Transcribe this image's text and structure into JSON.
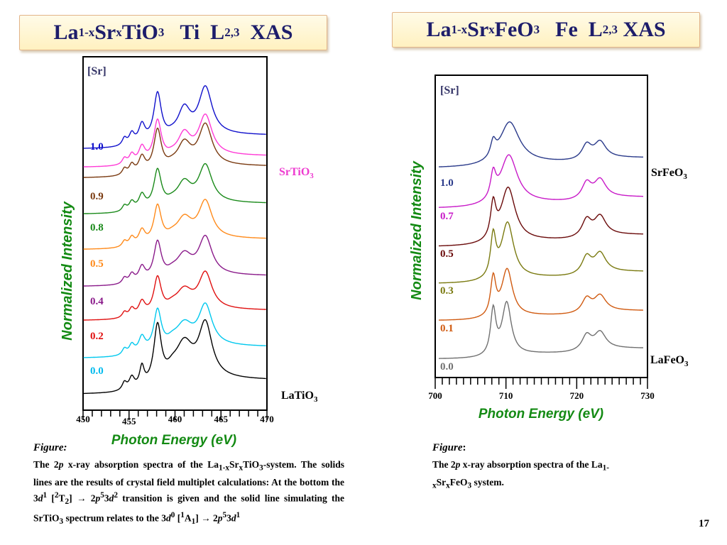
{
  "slide": {
    "page_number": "17"
  },
  "titles": {
    "left": {
      "pre": "La",
      "s1": "1-x",
      "mid1": "Sr",
      "s2": "x",
      "mid2": "TiO",
      "s3": "3",
      "mid3": "Ti  L",
      "s4": "2,3",
      "tail": "  XAS"
    },
    "right": {
      "pre": "La",
      "s1": "1-x",
      "mid1": "Sr",
      "s2": "x",
      "mid2": "FeO",
      "s3": "3",
      "mid3": "Fe  L",
      "s4": "2,3",
      "tail": " XAS"
    }
  },
  "colors": {
    "title_text": "#1d1d6b",
    "axis_title": "#138a13",
    "srtio3_label": "#ee3bd0",
    "frame": "#000000"
  },
  "chart_data": [
    {
      "type": "line",
      "xlabel": "Photon Energy  (eV)",
      "ylabel": "Normalized Intensity",
      "xlim": [
        450,
        470
      ],
      "x_ticks": [
        450,
        455,
        460,
        465,
        470
      ],
      "legend_header": "[Sr]",
      "end_labels": {
        "top": "SrTiO3",
        "bottom": "LaTiO3"
      },
      "series": [
        {
          "name": "0.0",
          "color": "#000000",
          "label_color": "#00bbee"
        },
        {
          "name": "",
          "color": "#00c8ee"
        },
        {
          "name": "0.2",
          "color": "#e01010"
        },
        {
          "name": "0.4",
          "color": "#8a1a8a"
        },
        {
          "name": "0.5",
          "color": "#ff8a1a"
        },
        {
          "name": "0.8",
          "color": "#1a8a1a"
        },
        {
          "name": "0.9",
          "color": "#7a3a10"
        },
        {
          "name": "",
          "color": "#ff3ad6"
        },
        {
          "name": "1.0",
          "color": "#1010cc"
        }
      ]
    },
    {
      "type": "line",
      "xlabel": "Photon Energy  (eV)",
      "ylabel": "Normalized Intensity",
      "xlim": [
        700,
        730
      ],
      "x_ticks": [
        700,
        710,
        720,
        730
      ],
      "legend_header": "[Sr]",
      "end_labels": {
        "top": "SrFeO3",
        "bottom": "LaFeO3"
      },
      "series": [
        {
          "name": "0.0",
          "color": "#707070"
        },
        {
          "name": "0.1",
          "color": "#d05a10"
        },
        {
          "name": "0.3",
          "color": "#7a7a10"
        },
        {
          "name": "0.5",
          "color": "#6a0a0a"
        },
        {
          "name": "0.7",
          "color": "#c81ac8"
        },
        {
          "name": "1.0",
          "color": "#2a3a8a"
        }
      ]
    }
  ],
  "captions": {
    "left": {
      "head": "Figure:",
      "p1": "The 2",
      "p1i": "p",
      "p2": " x-ray absorption spectra of the La",
      "p2s1": "1-x",
      "p3": "Sr",
      "p3s": "x",
      "p4": "TiO",
      "p4s": "3",
      "p5": "-system. The solids lines are the results of crystal field multiplet calculations: At the bottom the 3",
      "p5i": "d",
      "p5sup": "1",
      "p6": " [",
      "p6sup": "2",
      "p7": "T",
      "p7s": "2",
      "p8": "] → 2",
      "p8i": "p",
      "p8sup": "5",
      "p9": "3",
      "p9i": "d",
      "p9sup": "2",
      "p10": " transition is given and the solid line simulating the SrTiO",
      "p10s": "3",
      "p11": " spectrum relates to the 3",
      "p11i": "d",
      "p11sup": "0",
      "p12": " [",
      "p12sup": "1",
      "p13": "A",
      "p13s": "1",
      "p14": "] → 2",
      "p14i": "p",
      "p14sup": "5",
      "p15": "3",
      "p15i": "d",
      "p15sup": "1"
    },
    "right": {
      "head": "Figure",
      "head_colon": ":",
      "p1": "The 2",
      "p1i": "p",
      "p2": " x-ray absorption spectra of the La",
      "p2s1": "1-x",
      "p3": "Sr",
      "p3s": "x",
      "p4": "FeO",
      "p4s": "3",
      "p5": " system."
    }
  }
}
